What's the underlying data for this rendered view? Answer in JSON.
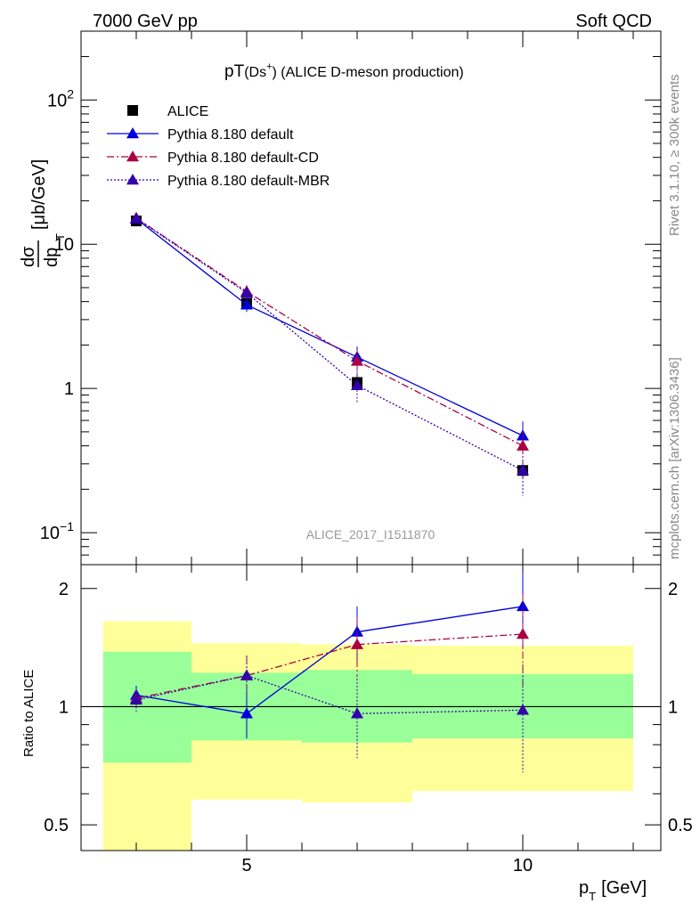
{
  "header": {
    "left": "7000 GeV pp",
    "right": "Soft QCD"
  },
  "side_labels": {
    "rivet": "Rivet 3.1.10, ≥ 300k events",
    "source": "mcplots.cern.ch [arXiv:1306.3436]"
  },
  "chart_data": [
    {
      "type": "line",
      "title_main": "pT",
      "title_particle": "(Ds",
      "title_sup": "+",
      "title_rest": ") (ALICE D-meson production)",
      "watermark": "ALICE_2017_I1511870",
      "y_scale": "log",
      "ylim": [
        0.06,
        300
      ],
      "xlim": [
        2,
        12.5
      ],
      "yticks": [
        {
          "value": 100,
          "base": "10",
          "exp": "2"
        },
        {
          "value": 10,
          "base": "10",
          "exp": ""
        },
        {
          "value": 1,
          "base": "1",
          "exp": ""
        },
        {
          "value": 0.1,
          "base": "10",
          "exp": "−1"
        }
      ],
      "ylabel": {
        "num": "dσ",
        "den": "dp",
        "den_sub": "T",
        "unit": "[μb/GeV]"
      },
      "legend_position": "top-left",
      "x": [
        3,
        5,
        7,
        10
      ],
      "data": {
        "name": "ALICE",
        "color": "#000000",
        "values": [
          14.5,
          3.9,
          1.1,
          0.27
        ],
        "err": [
          1.2,
          0.5,
          0.15,
          0.03
        ],
        "x_halfwidth": [
          1,
          1,
          1,
          2
        ]
      },
      "series": [
        {
          "name": "Pythia 8.180 default",
          "color": "#0000dd",
          "dash": "",
          "marker": "triangle",
          "values": [
            15.0,
            3.8,
            1.65,
            0.47
          ],
          "err": [
            0.3,
            0.4,
            0.3,
            0.12
          ]
        },
        {
          "name": "Pythia 8.180 default-CD",
          "color": "#aa0044",
          "dash": "8,3,2,3",
          "marker": "triangle",
          "values": [
            15.2,
            4.7,
            1.55,
            0.4
          ],
          "err": [
            0.3,
            0.5,
            0.3,
            0.1
          ]
        },
        {
          "name": "Pythia 8.180 default-MBR",
          "color": "#3300aa",
          "dash": "2,2",
          "marker": "triangle",
          "values": [
            15.1,
            4.6,
            1.05,
            0.27
          ],
          "err": [
            0.3,
            0.5,
            0.25,
            0.09
          ]
        }
      ]
    },
    {
      "type": "line",
      "ylabel": "Ratio to ALICE",
      "xlabel_main": "p",
      "xlabel_sub": "T",
      "xlabel_unit": "[GeV]",
      "y_scale": "log",
      "ylim": [
        0.43,
        2.3
      ],
      "xlim": [
        2,
        12.5
      ],
      "yticks": [
        0.5,
        1,
        2
      ],
      "ytick_labels": [
        "0.5",
        "1",
        "2"
      ],
      "xticks": [
        5,
        10
      ],
      "xtick_labels": [
        "5",
        "10"
      ],
      "bands": [
        {
          "x0": 2,
          "x1": 4,
          "yellow": [
            0.43,
            1.65
          ],
          "green": [
            0.72,
            1.38
          ]
        },
        {
          "x0": 4,
          "x1": 6,
          "yellow": [
            0.58,
            1.45
          ],
          "green": [
            0.82,
            1.22
          ]
        },
        {
          "x0": 6,
          "x1": 8,
          "yellow": [
            0.57,
            1.44
          ],
          "green": [
            0.81,
            1.24
          ]
        },
        {
          "x0": 8,
          "x1": 12,
          "yellow": [
            0.61,
            1.43
          ],
          "green": [
            0.83,
            1.21
          ]
        }
      ],
      "series": [
        {
          "name": "Pythia 8.180 default",
          "color": "#0000dd",
          "dash": "",
          "values": [
            1.07,
            0.96,
            1.55,
            1.8
          ],
          "err": [
            0.06,
            0.13,
            0.25,
            0.4
          ]
        },
        {
          "name": "Pythia 8.180 default-CD",
          "color": "#aa0044",
          "dash": "8,3,2,3",
          "values": [
            1.05,
            1.2,
            1.44,
            1.53
          ],
          "err": [
            0.06,
            0.14,
            0.25,
            0.4
          ]
        },
        {
          "name": "Pythia 8.180 default-MBR",
          "color": "#3300aa",
          "dash": "2,2",
          "values": [
            1.04,
            1.2,
            0.96,
            0.98
          ],
          "err": [
            0.07,
            0.15,
            0.22,
            0.3
          ]
        }
      ]
    }
  ]
}
